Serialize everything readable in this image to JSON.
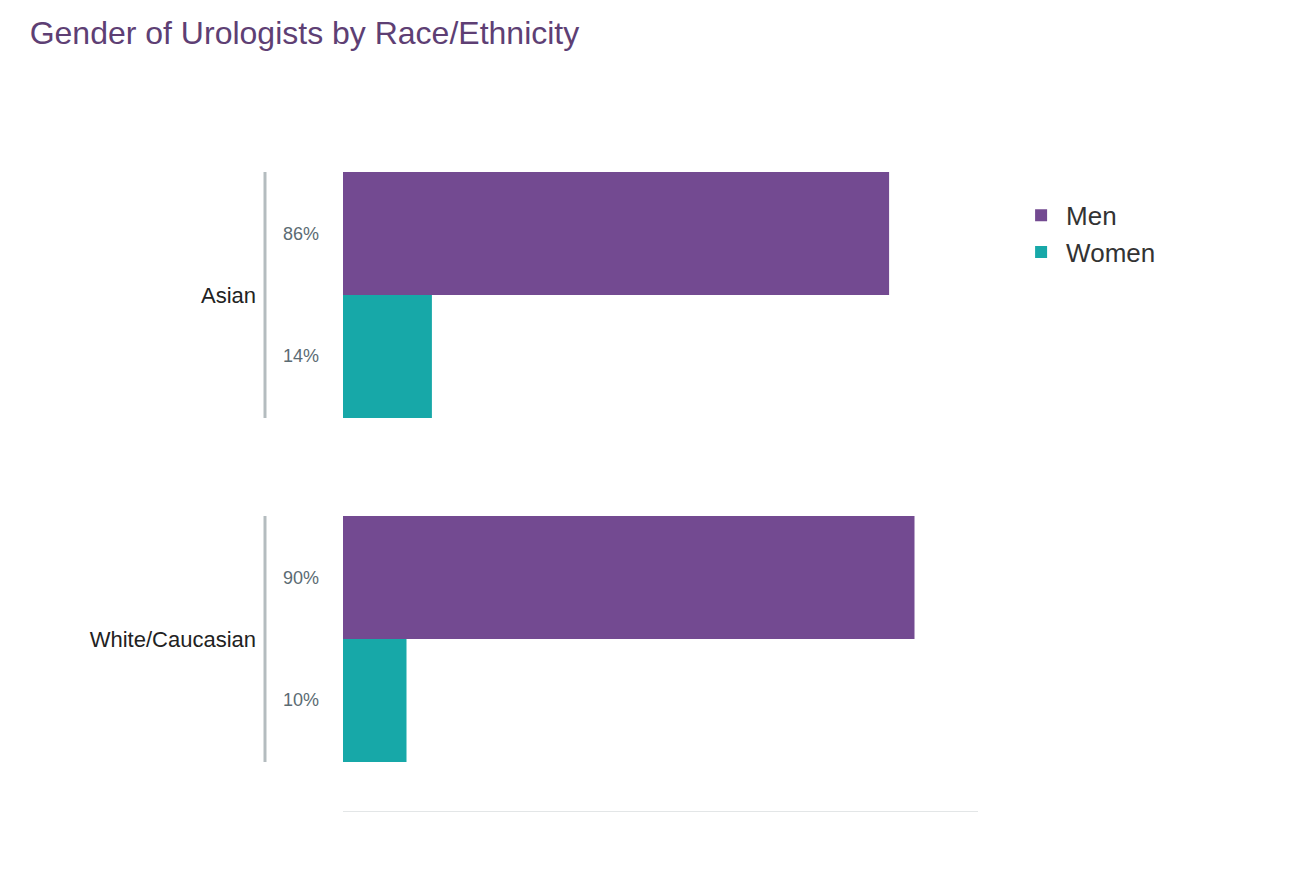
{
  "chart_data": {
    "type": "bar",
    "title": "Gender of Urologists by Race/Ethnicity",
    "orientation": "horizontal",
    "categories": [
      "Asian",
      "White/Caucasian"
    ],
    "series": [
      {
        "name": "Men",
        "color": "#734a91",
        "values": [
          86,
          90
        ],
        "value_labels": [
          "86%",
          "90%"
        ]
      },
      {
        "name": "Women",
        "color": "#17a8a8",
        "values": [
          14,
          10
        ],
        "value_labels": [
          "14%",
          "10%"
        ]
      }
    ],
    "xlim": [
      0,
      100
    ],
    "xticks": [],
    "data_labels": true,
    "tick_labels": "y",
    "grid": false,
    "legend": "upper right"
  }
}
